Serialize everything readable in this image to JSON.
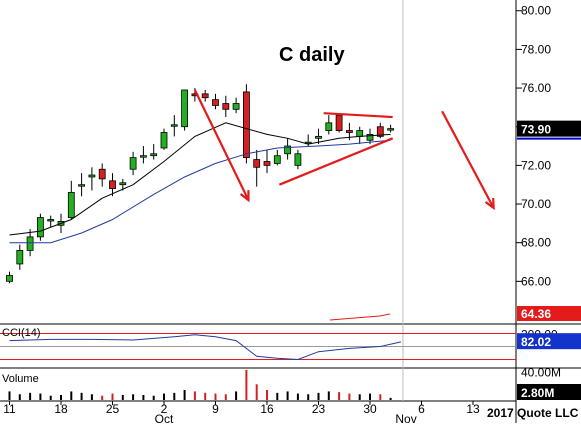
{
  "chart_data": {
    "type": "candlestick",
    "title": "C daily",
    "price_axis": {
      "ticks": [
        "80.00",
        "78.00",
        "76.00",
        "74.00",
        "72.00",
        "70.00",
        "68.00",
        "66.00"
      ],
      "ylim": [
        64.0,
        80.4
      ]
    },
    "x_ticks": [
      {
        "label": "11",
        "index": 0
      },
      {
        "label": "18",
        "index": 5
      },
      {
        "label": "25",
        "index": 10
      },
      {
        "label": "2",
        "index": 15
      },
      {
        "label": "9",
        "index": 20
      },
      {
        "label": "16",
        "index": 25
      },
      {
        "label": "23",
        "index": 30
      },
      {
        "label": "30",
        "index": 35
      },
      {
        "label": "6",
        "index": 40
      },
      {
        "label": "13",
        "index": 45
      }
    ],
    "month_labels": [
      {
        "label": "Oct",
        "index": 15
      },
      {
        "label": "Nov",
        "index": 38.5
      }
    ],
    "copyright": "2017 Quote LLC",
    "last_price": "73.90",
    "candles": [
      {
        "o": 66.0,
        "h": 66.5,
        "l": 65.9,
        "c": 66.3
      },
      {
        "o": 66.9,
        "h": 67.9,
        "l": 66.6,
        "c": 67.6
      },
      {
        "o": 67.6,
        "h": 68.7,
        "l": 67.3,
        "c": 68.3
      },
      {
        "o": 68.3,
        "h": 69.5,
        "l": 68.1,
        "c": 69.3
      },
      {
        "o": 69.2,
        "h": 69.4,
        "l": 68.8,
        "c": 69.2
      },
      {
        "o": 68.9,
        "h": 69.5,
        "l": 68.5,
        "c": 69.1
      },
      {
        "o": 69.3,
        "h": 71.2,
        "l": 69.2,
        "c": 70.6
      },
      {
        "o": 71.0,
        "h": 71.6,
        "l": 70.4,
        "c": 71.0
      },
      {
        "o": 71.4,
        "h": 71.9,
        "l": 70.7,
        "c": 71.5
      },
      {
        "o": 71.8,
        "h": 72.1,
        "l": 70.9,
        "c": 71.3
      },
      {
        "o": 71.2,
        "h": 71.6,
        "l": 70.4,
        "c": 70.8
      },
      {
        "o": 71.0,
        "h": 71.3,
        "l": 70.7,
        "c": 71.1
      },
      {
        "o": 71.8,
        "h": 72.7,
        "l": 71.5,
        "c": 72.4
      },
      {
        "o": 72.5,
        "h": 73.0,
        "l": 72.1,
        "c": 72.5
      },
      {
        "o": 72.5,
        "h": 73.1,
        "l": 72.3,
        "c": 72.6
      },
      {
        "o": 72.9,
        "h": 73.9,
        "l": 72.8,
        "c": 73.7
      },
      {
        "o": 74.1,
        "h": 74.6,
        "l": 73.5,
        "c": 74.1
      },
      {
        "o": 74.0,
        "h": 75.9,
        "l": 73.8,
        "c": 75.9
      },
      {
        "o": 75.7,
        "h": 76.0,
        "l": 75.3,
        "c": 75.6
      },
      {
        "o": 75.7,
        "h": 75.9,
        "l": 75.3,
        "c": 75.5
      },
      {
        "o": 75.4,
        "h": 75.7,
        "l": 74.9,
        "c": 75.1
      },
      {
        "o": 75.2,
        "h": 75.6,
        "l": 74.5,
        "c": 74.9
      },
      {
        "o": 74.9,
        "h": 75.5,
        "l": 74.7,
        "c": 75.2
      },
      {
        "o": 75.8,
        "h": 76.2,
        "l": 72.1,
        "c": 72.4
      },
      {
        "o": 72.3,
        "h": 72.8,
        "l": 70.9,
        "c": 71.9
      },
      {
        "o": 72.2,
        "h": 72.8,
        "l": 71.6,
        "c": 72.0
      },
      {
        "o": 72.1,
        "h": 72.8,
        "l": 72.0,
        "c": 72.5
      },
      {
        "o": 72.6,
        "h": 73.4,
        "l": 72.3,
        "c": 73.0
      },
      {
        "o": 72.0,
        "h": 72.8,
        "l": 71.8,
        "c": 72.6
      },
      {
        "o": 73.2,
        "h": 73.6,
        "l": 73.0,
        "c": 73.2
      },
      {
        "o": 73.4,
        "h": 73.9,
        "l": 73.1,
        "c": 73.5
      },
      {
        "o": 73.8,
        "h": 74.6,
        "l": 73.6,
        "c": 74.2
      },
      {
        "o": 74.6,
        "h": 74.7,
        "l": 73.7,
        "c": 73.8
      },
      {
        "o": 73.8,
        "h": 74.2,
        "l": 73.3,
        "c": 73.7
      },
      {
        "o": 73.5,
        "h": 74.0,
        "l": 73.1,
        "c": 73.8
      },
      {
        "o": 73.3,
        "h": 73.9,
        "l": 73.1,
        "c": 73.6
      },
      {
        "o": 74.0,
        "h": 74.2,
        "l": 73.4,
        "c": 73.5
      },
      {
        "o": 73.9,
        "h": 74.1,
        "l": 73.7,
        "c": 73.9
      }
    ],
    "ma_fast": [
      [
        0,
        68.4
      ],
      [
        3,
        68.6
      ],
      [
        6,
        69.2
      ],
      [
        9,
        70.3
      ],
      [
        12,
        71.0
      ],
      [
        15,
        72.2
      ],
      [
        18,
        73.5
      ],
      [
        21,
        74.2
      ],
      [
        23,
        73.9
      ],
      [
        25,
        73.6
      ],
      [
        27,
        73.4
      ],
      [
        29,
        73.1
      ],
      [
        32,
        73.4
      ],
      [
        34,
        73.5
      ],
      [
        37,
        73.6
      ]
    ],
    "ma_slow": [
      [
        0,
        68.0
      ],
      [
        4,
        68.0
      ],
      [
        7,
        68.5
      ],
      [
        10,
        69.2
      ],
      [
        14,
        70.5
      ],
      [
        17,
        71.4
      ],
      [
        20,
        72.1
      ],
      [
        23,
        72.6
      ],
      [
        26,
        72.9
      ],
      [
        30,
        73.0
      ],
      [
        33,
        73.1
      ],
      [
        37,
        73.3
      ]
    ],
    "annotations": {
      "arrows": [
        {
          "from": [
            18.0,
            75.9
          ],
          "to": [
            23.2,
            70.2
          ]
        },
        {
          "from": [
            42.0,
            74.8
          ],
          "to": [
            47.0,
            69.8
          ]
        }
      ],
      "triangle": {
        "upper": [
          [
            30.5,
            74.7
          ],
          [
            37.2,
            74.5
          ]
        ],
        "lower": [
          [
            26.2,
            71.0
          ],
          [
            37.2,
            73.4
          ]
        ]
      }
    },
    "ma_badge": {
      "label": "64.36",
      "value": 64.36
    },
    "cci": {
      "label": "CCI(14)",
      "ticks": [
        "200.00",
        "82.02"
      ],
      "last": "82.02",
      "levels": [
        -200,
        0,
        200
      ],
      "ylim": [
        -300,
        300
      ],
      "values": [
        [
          0,
          90
        ],
        [
          4,
          110
        ],
        [
          8,
          110
        ],
        [
          12,
          100
        ],
        [
          16,
          150
        ],
        [
          18,
          180
        ],
        [
          20,
          150
        ],
        [
          22,
          90
        ],
        [
          24,
          -150
        ],
        [
          26,
          -180
        ],
        [
          28,
          -200
        ],
        [
          30,
          -80
        ],
        [
          33,
          -30
        ],
        [
          36,
          0
        ],
        [
          38,
          70
        ]
      ]
    },
    "volume": {
      "label": "Volume",
      "ticks": [
        "40.00M",
        "2.80M"
      ],
      "last": "2.80M",
      "ylim": [
        0,
        42
      ],
      "values": [
        12,
        8,
        10,
        9,
        6,
        7,
        12,
        10,
        8,
        6,
        9,
        7,
        8,
        7,
        6,
        9,
        10,
        14,
        12,
        10,
        9,
        8,
        12,
        42,
        22,
        14,
        10,
        12,
        9,
        8,
        10,
        12,
        11,
        9,
        8,
        9,
        8,
        3
      ]
    }
  }
}
